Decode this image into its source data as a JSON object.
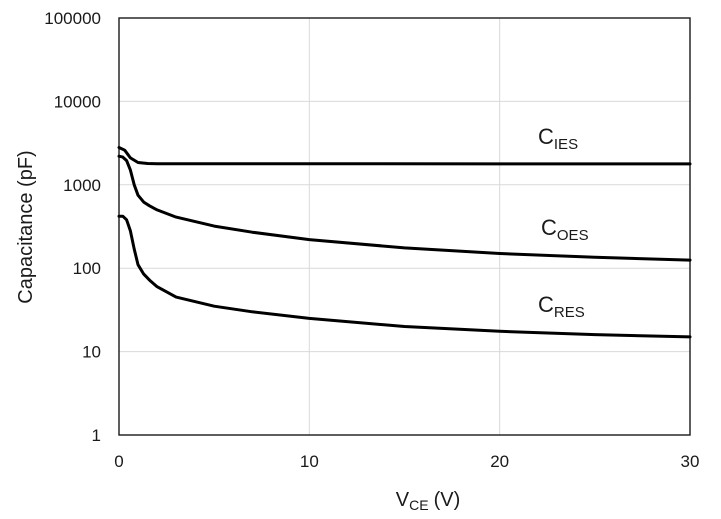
{
  "chart_data": {
    "type": "line",
    "ylabel": "Capacitance (pF)",
    "xlabel": {
      "main": "V",
      "sub": "CE",
      "unit": "(V)"
    },
    "xlim": [
      0,
      30
    ],
    "ylim": [
      1,
      100000
    ],
    "yscale": "log",
    "xticks": [
      "0",
      "10",
      "20",
      "30"
    ],
    "yticks": [
      "1",
      "10",
      "100",
      "1000",
      "10000",
      "100000"
    ],
    "grid": true,
    "series_color": "#000000",
    "grid_color": "#d9d9d9",
    "series": [
      {
        "name": "C_IES",
        "label": {
          "main": "C",
          "sub": "IES"
        },
        "x": [
          0,
          0.3,
          0.6,
          1.0,
          1.5,
          2,
          5,
          10,
          20,
          30
        ],
        "y": [
          2800,
          2600,
          2100,
          1850,
          1800,
          1790,
          1790,
          1790,
          1780,
          1780
        ]
      },
      {
        "name": "C_OES",
        "label": {
          "main": "C",
          "sub": "OES"
        },
        "x": [
          0,
          0.2,
          0.4,
          0.6,
          0.8,
          1.0,
          1.3,
          1.6,
          2,
          3,
          5,
          7,
          10,
          15,
          20,
          25,
          30
        ],
        "y": [
          2200,
          2150,
          1950,
          1500,
          1000,
          750,
          620,
          560,
          500,
          410,
          320,
          270,
          220,
          175,
          150,
          135,
          125
        ]
      },
      {
        "name": "C_RES",
        "label": {
          "main": "C",
          "sub": "RES"
        },
        "x": [
          0,
          0.2,
          0.4,
          0.6,
          0.8,
          1.0,
          1.3,
          1.6,
          2,
          3,
          5,
          7,
          10,
          15,
          20,
          25,
          30
        ],
        "y": [
          420,
          420,
          380,
          280,
          170,
          110,
          85,
          72,
          60,
          45,
          35,
          30,
          25,
          20,
          17.5,
          16,
          15
        ]
      }
    ]
  }
}
